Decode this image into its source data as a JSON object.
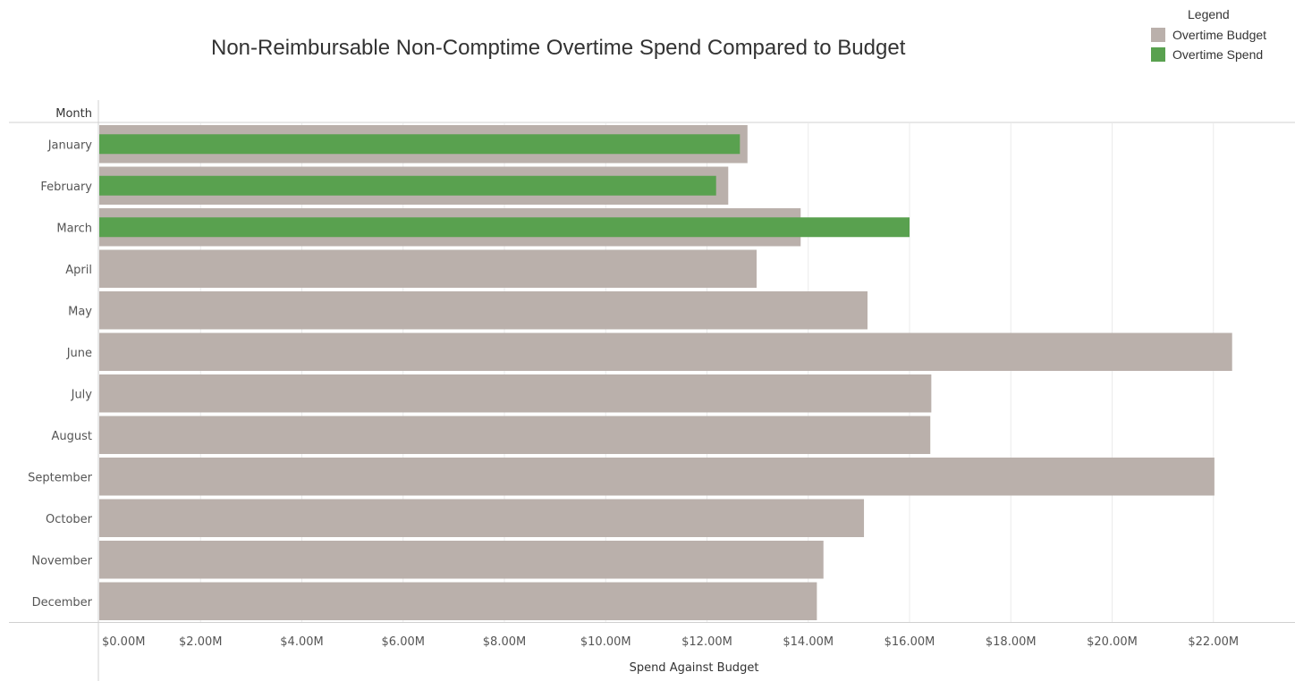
{
  "chart_data": {
    "type": "bar",
    "orientation": "horizontal",
    "title": "Non-Reimbursable Non-Comptime Overtime Spend Compared to Budget",
    "row_header": "Month",
    "xlabel": "Spend Against Budget",
    "xlim": [
      0,
      23.5
    ],
    "x_ticks": [
      0,
      2,
      4,
      6,
      8,
      10,
      12,
      14,
      16,
      18,
      20,
      22
    ],
    "x_tick_labels": [
      "$0.00M",
      "$2.00M",
      "$4.00M",
      "$6.00M",
      "$8.00M",
      "$10.00M",
      "$12.00M",
      "$14.00M",
      "$16.00M",
      "$18.00M",
      "$20.00M",
      "$22.00M"
    ],
    "grid": true,
    "categories": [
      "January",
      "February",
      "March",
      "April",
      "May",
      "June",
      "July",
      "August",
      "September",
      "October",
      "November",
      "December"
    ],
    "series": [
      {
        "name": "Overtime Budget",
        "color": "#bab0ab",
        "values": [
          12.8,
          12.42,
          13.85,
          12.98,
          15.17,
          22.37,
          16.43,
          16.41,
          22.02,
          15.1,
          14.3,
          14.17
        ]
      },
      {
        "name": "Overtime Spend",
        "color": "#59a14f",
        "values": [
          12.65,
          12.18,
          16.0,
          null,
          null,
          null,
          null,
          null,
          null,
          null,
          null,
          null
        ]
      }
    ],
    "legend": {
      "title": "Legend",
      "position": "top-right"
    }
  }
}
